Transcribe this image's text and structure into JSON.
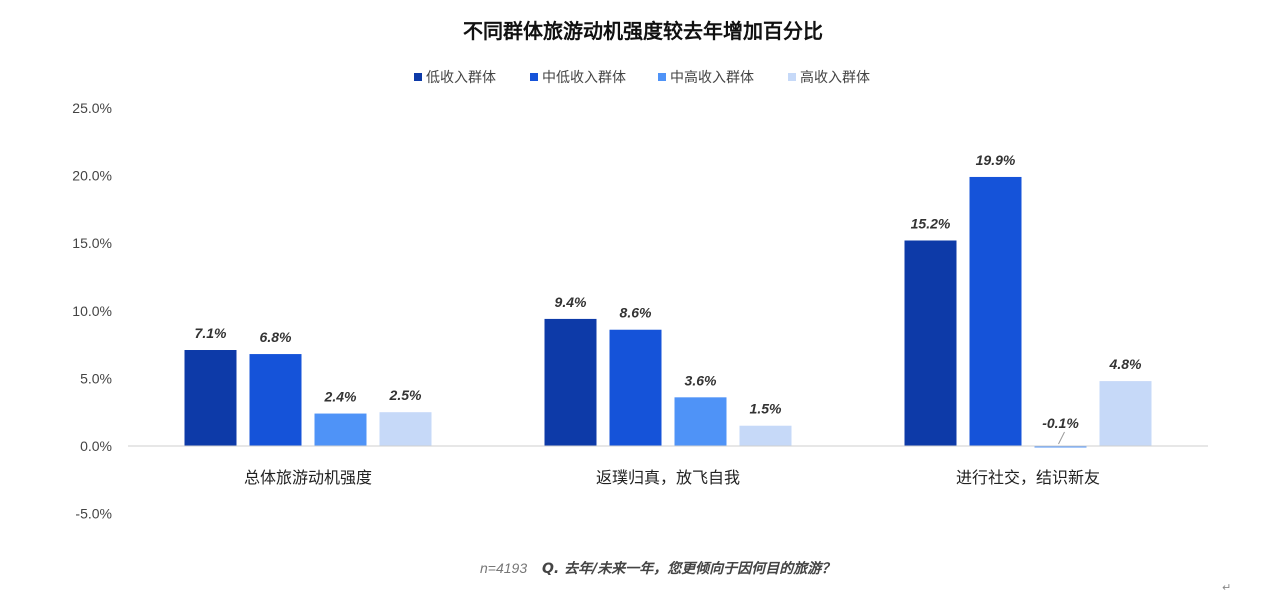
{
  "footer": {
    "n_text": "n=4193",
    "question": "Q. 去年/未来一年，您更倾向于因何目的旅游？",
    "return_mark": "↵"
  },
  "chart_data": {
    "type": "bar",
    "title": "不同群体旅游动机强度较去年增加百分比",
    "categories": [
      "总体旅游动机强度",
      "返璞归真，放飞自我",
      "进行社交，结识新友"
    ],
    "series": [
      {
        "name": "低收入群体",
        "color": "#0d3aa8",
        "values": [
          7.1,
          9.4,
          15.2
        ]
      },
      {
        "name": "中低收入群体",
        "color": "#1553d9",
        "values": [
          6.8,
          8.6,
          19.9
        ]
      },
      {
        "name": "中高收入群体",
        "color": "#4f93f7",
        "values": [
          2.4,
          3.6,
          -0.1
        ]
      },
      {
        "name": "高收入群体",
        "color": "#c6d9f8",
        "values": [
          2.5,
          1.5,
          4.8
        ]
      }
    ],
    "data_labels": [
      [
        "7.1%",
        "9.4%",
        "15.2%"
      ],
      [
        "6.8%",
        "8.6%",
        "19.9%"
      ],
      [
        "2.4%",
        "3.6%",
        "-0.1%"
      ],
      [
        "2.5%",
        "1.5%",
        "4.8%"
      ]
    ],
    "y_ticks": [
      25.0,
      20.0,
      15.0,
      10.0,
      5.0,
      0.0,
      -5.0
    ],
    "y_tick_labels": [
      "25.0%",
      "20.0%",
      "15.0%",
      "10.0%",
      "5.0%",
      "0.0%",
      "-5.0%"
    ],
    "ylim": [
      -5,
      25
    ],
    "grid": false,
    "legend_position": "top-center",
    "xlabel": "",
    "ylabel": ""
  }
}
